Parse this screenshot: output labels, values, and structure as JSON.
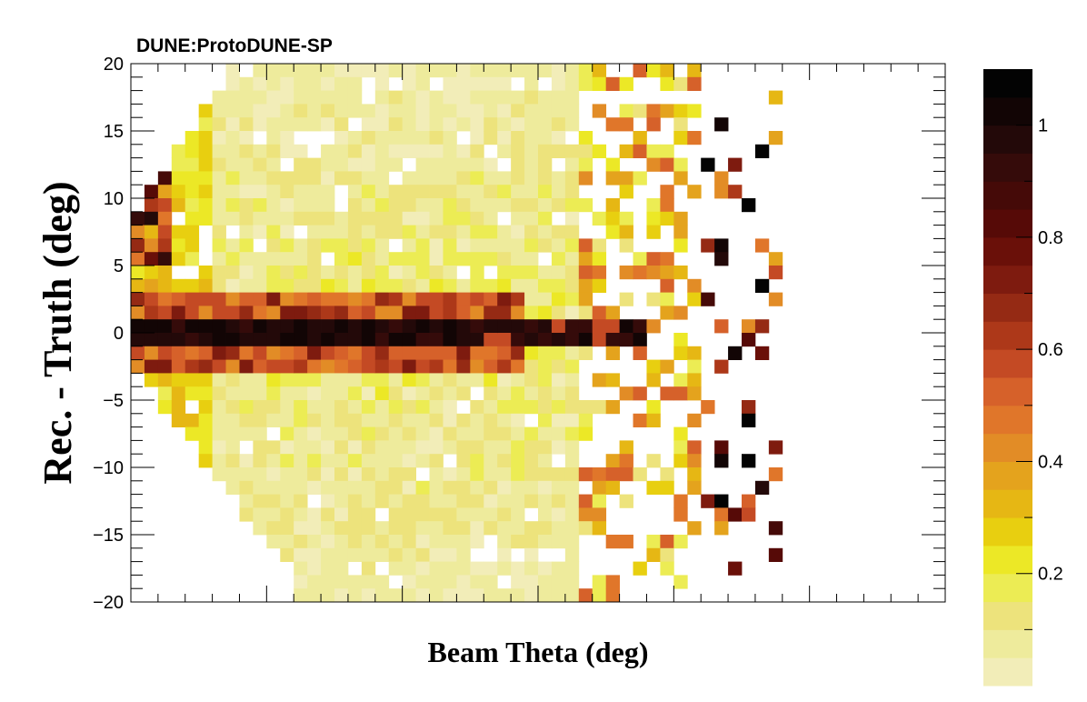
{
  "chart_data": {
    "type": "heatmap",
    "title": "DUNE:ProtoDUNE-SP",
    "xlabel": "Beam Theta (deg)",
    "ylabel": "Rec. - Truth (deg)",
    "ylim": [
      -20,
      20
    ],
    "y_ticks": [
      "20",
      "15",
      "10",
      "5",
      "0",
      "−5",
      "−10",
      "−15",
      "−20"
    ],
    "colorbar": {
      "range": [
        0,
        1.1
      ],
      "ticks": [
        "0.2",
        "0.4",
        "0.6",
        "0.8",
        "1"
      ],
      "tick_values": [
        0.2,
        0.4,
        0.6,
        0.8,
        1.0
      ],
      "palette": [
        "#f2edb8",
        "#eeeb9c",
        "#ede37c",
        "#ecec54",
        "#ece826",
        "#e8cf10",
        "#e6b714",
        "#e4a31d",
        "#e28c26",
        "#e0762a",
        "#d6612a",
        "#c44a24",
        "#ad3819",
        "#952a14",
        "#7e1b0f",
        "#6a1009",
        "#560a07",
        "#450a08",
        "#350b0a",
        "#230909",
        "#120505",
        "#030303"
      ]
    },
    "grid": false,
    "legend": "colorbar-right"
  }
}
